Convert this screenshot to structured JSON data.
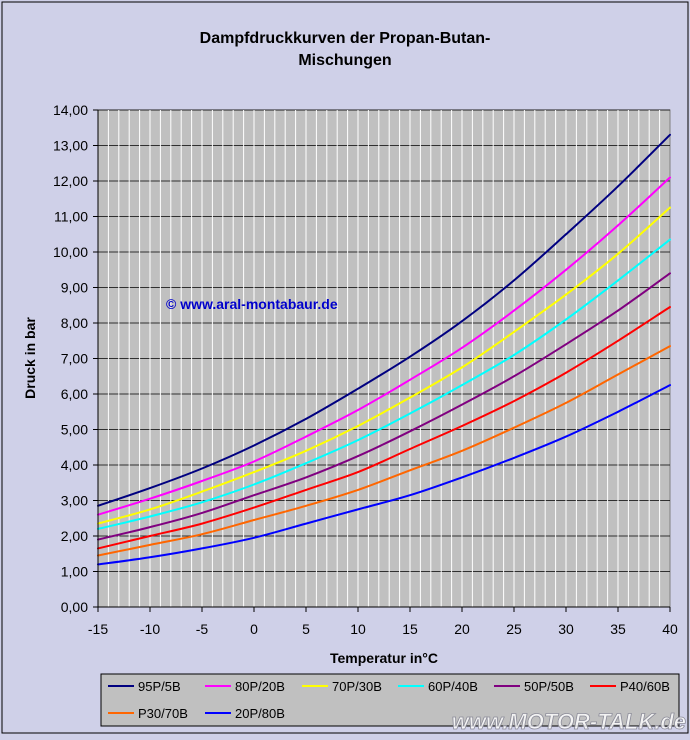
{
  "chart_data": {
    "type": "line",
    "title_line1": "Dampfdruckkurven der Propan-Butan-",
    "title_line2": "Mischungen",
    "xlabel": "Temperatur in°C",
    "ylabel": "Druck in bar",
    "xlim": [
      -15,
      40
    ],
    "ylim": [
      0,
      14
    ],
    "grid": true,
    "legend_position": "bottom",
    "x_ticks": [
      "-15",
      "-10",
      "-5",
      "0",
      "5",
      "10",
      "15",
      "20",
      "25",
      "30",
      "35",
      "40"
    ],
    "y_ticks": [
      "0,00",
      "1,00",
      "2,00",
      "3,00",
      "4,00",
      "5,00",
      "6,00",
      "7,00",
      "8,00",
      "9,00",
      "10,00",
      "11,00",
      "12,00",
      "13,00",
      "14,00"
    ],
    "x": [
      -15,
      -10,
      -5,
      0,
      5,
      10,
      15,
      20,
      25,
      30,
      35,
      40
    ],
    "series": [
      {
        "name": "95P/5B",
        "color": "#000080",
        "values": [
          2.85,
          3.35,
          3.9,
          4.55,
          5.3,
          6.15,
          7.05,
          8.05,
          9.2,
          10.5,
          11.85,
          13.3
        ]
      },
      {
        "name": "80P/20B",
        "color": "#ff00ff",
        "values": [
          2.6,
          3.05,
          3.55,
          4.1,
          4.8,
          5.55,
          6.4,
          7.3,
          8.35,
          9.5,
          10.75,
          12.1
        ]
      },
      {
        "name": "70P/30B",
        "color": "#ffff00",
        "values": [
          2.35,
          2.75,
          3.25,
          3.8,
          4.4,
          5.1,
          5.9,
          6.75,
          7.75,
          8.8,
          9.95,
          11.25
        ]
      },
      {
        "name": "60P/40B",
        "color": "#00ffff",
        "values": [
          2.2,
          2.55,
          2.95,
          3.45,
          4.05,
          4.7,
          5.45,
          6.25,
          7.1,
          8.1,
          9.2,
          10.35
        ]
      },
      {
        "name": "50P/50B",
        "color": "#800080",
        "values": [
          1.9,
          2.25,
          2.65,
          3.15,
          3.65,
          4.25,
          4.95,
          5.7,
          6.5,
          7.4,
          8.35,
          9.4
        ]
      },
      {
        "name": "P40/60B",
        "color": "#ff0000",
        "values": [
          1.65,
          2.0,
          2.35,
          2.8,
          3.3,
          3.8,
          4.45,
          5.1,
          5.8,
          6.6,
          7.5,
          8.45
        ]
      },
      {
        "name": "P30/70B",
        "color": "#ff6600",
        "values": [
          1.45,
          1.75,
          2.05,
          2.45,
          2.85,
          3.3,
          3.85,
          4.4,
          5.05,
          5.75,
          6.55,
          7.35
        ]
      },
      {
        "name": "20P/80B",
        "color": "#0000ff",
        "values": [
          1.2,
          1.4,
          1.65,
          1.95,
          2.35,
          2.75,
          3.15,
          3.65,
          4.2,
          4.8,
          5.5,
          6.25
        ]
      }
    ],
    "annotation": "© www.aral-montabaur.de",
    "watermark": "www.MOTOR-TALK.de"
  }
}
